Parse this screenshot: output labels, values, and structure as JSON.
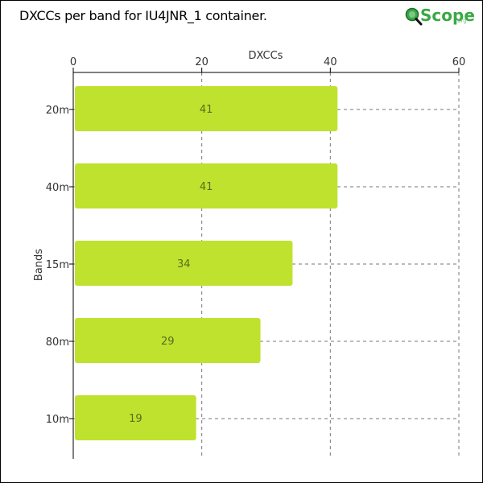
{
  "title": "DXCCs per band for IU4JNR_1 container.",
  "logo": {
    "name": "Scope",
    "suffix": ".org"
  },
  "chart_data": {
    "type": "bar",
    "orientation": "horizontal",
    "categories": [
      "20m",
      "40m",
      "15m",
      "80m",
      "10m"
    ],
    "values": [
      41,
      41,
      34,
      29,
      19
    ],
    "xlabel": "DXCCs",
    "ylabel": "Bands",
    "xlim": [
      0,
      60
    ],
    "xticks": [
      0,
      20,
      40,
      60
    ],
    "x_axis_position": "top",
    "grid": true,
    "bar_color": "#bfe22e",
    "label_color": "#5b6b1f"
  }
}
